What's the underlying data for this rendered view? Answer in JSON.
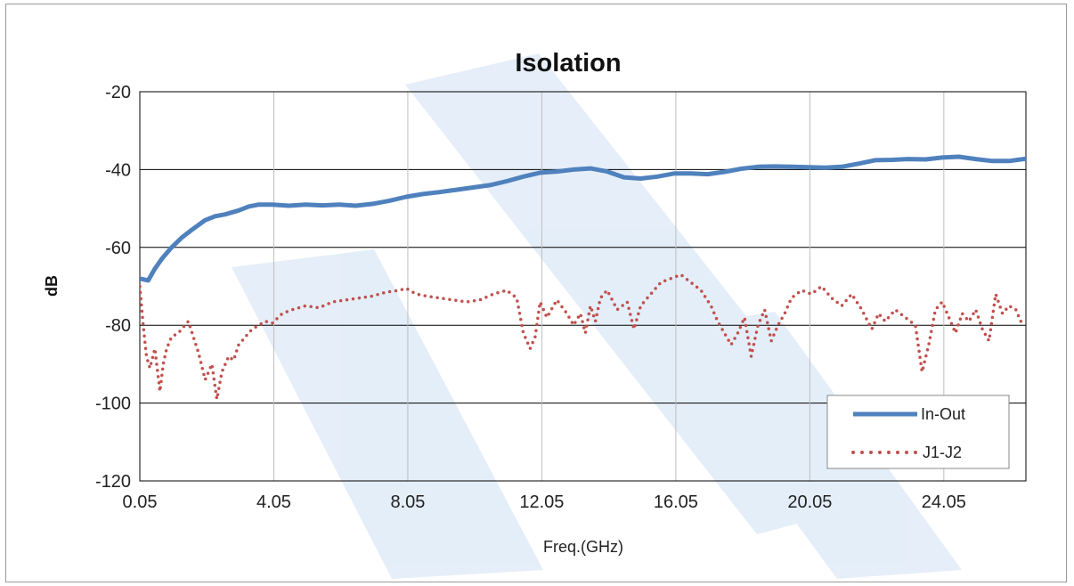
{
  "chart_data": {
    "type": "line",
    "title": "Isolation",
    "xlabel": "Freq.(GHz)",
    "ylabel": "dB",
    "xlim": [
      0.05,
      26.5
    ],
    "ylim": [
      -120,
      -20
    ],
    "x_ticks": [
      0.05,
      4.05,
      8.05,
      12.05,
      16.05,
      20.05,
      24.05
    ],
    "x_tick_labels": [
      "0.05",
      "4.05",
      "8.05",
      "12.05",
      "16.05",
      "20.05",
      "24.05"
    ],
    "y_ticks": [
      -20,
      -40,
      -60,
      -80,
      -100,
      -120
    ],
    "y_tick_labels": [
      "-20",
      "-40",
      "-60",
      "-80",
      "-100",
      "-120"
    ],
    "grid": true,
    "legend_position": "bottom-right",
    "series": [
      {
        "name": "In-Out",
        "style": "solid",
        "color": "#4f81bd",
        "x": [
          0.05,
          0.3,
          0.5,
          0.7,
          1.0,
          1.3,
          1.6,
          2.0,
          2.3,
          2.6,
          3.0,
          3.3,
          3.6,
          4.0,
          4.5,
          5.0,
          5.5,
          6.0,
          6.5,
          7.0,
          7.5,
          8.0,
          8.5,
          9.0,
          9.5,
          10.0,
          10.5,
          11.0,
          11.5,
          12.0,
          12.5,
          13.0,
          13.5,
          14.0,
          14.5,
          15.0,
          15.5,
          16.0,
          16.5,
          17.0,
          17.5,
          18.0,
          18.5,
          19.0,
          19.5,
          20.0,
          20.5,
          21.0,
          21.5,
          22.0,
          22.5,
          23.0,
          23.5,
          24.0,
          24.5,
          25.0,
          25.5,
          26.0,
          26.5
        ],
        "y": [
          -68,
          -68.5,
          -65.5,
          -63,
          -60,
          -57.5,
          -55.5,
          -53,
          -52,
          -51.5,
          -50.5,
          -49.5,
          -49,
          -49,
          -49.3,
          -49,
          -49.2,
          -49,
          -49.3,
          -48.8,
          -48,
          -47,
          -46.3,
          -45.8,
          -45.2,
          -44.6,
          -44,
          -43,
          -41.8,
          -40.8,
          -40.5,
          -40,
          -39.7,
          -40.5,
          -42,
          -42.3,
          -41.8,
          -41,
          -41,
          -41.2,
          -40.6,
          -39.8,
          -39.3,
          -39.2,
          -39.3,
          -39.4,
          -39.5,
          -39.3,
          -38.5,
          -37.6,
          -37.5,
          -37.3,
          -37.4,
          -36.9,
          -36.7,
          -37.3,
          -37.8,
          -37.8,
          -37.2
        ]
      },
      {
        "name": "J1-J2",
        "style": "dotted",
        "color": "#c0504d",
        "x": [
          0.05,
          0.15,
          0.25,
          0.35,
          0.5,
          0.65,
          0.75,
          0.85,
          1.0,
          1.2,
          1.5,
          1.8,
          2.0,
          2.2,
          2.35,
          2.5,
          2.7,
          2.85,
          3.0,
          3.2,
          3.4,
          3.6,
          3.8,
          4.0,
          4.3,
          4.6,
          5.0,
          5.4,
          5.8,
          6.2,
          6.6,
          7.0,
          7.4,
          7.8,
          8.0,
          8.3,
          8.6,
          9.0,
          9.4,
          9.8,
          10.2,
          10.6,
          11.0,
          11.3,
          11.5,
          11.7,
          11.85,
          12.0,
          12.2,
          12.5,
          12.8,
          13.0,
          13.2,
          13.35,
          13.5,
          13.65,
          13.8,
          14.0,
          14.3,
          14.6,
          14.8,
          15.0,
          15.2,
          15.4,
          15.6,
          15.9,
          16.2,
          16.5,
          16.8,
          17.1,
          17.3,
          17.5,
          17.7,
          17.9,
          18.1,
          18.3,
          18.5,
          18.7,
          18.9,
          19.1,
          19.3,
          19.5,
          19.8,
          20.1,
          20.4,
          20.7,
          21.0,
          21.3,
          21.6,
          21.9,
          22.1,
          22.3,
          22.6,
          22.9,
          23.2,
          23.4,
          23.6,
          23.8,
          24.0,
          24.2,
          24.4,
          24.6,
          24.8,
          25.0,
          25.2,
          25.4,
          25.6,
          25.8,
          26.0,
          26.2,
          26.4
        ],
        "y": [
          -70,
          -80,
          -88,
          -91,
          -86,
          -97,
          -90,
          -86,
          -83,
          -82,
          -79,
          -87,
          -94,
          -90,
          -99,
          -92,
          -88,
          -89,
          -85,
          -83,
          -81,
          -80,
          -79,
          -79.5,
          -77,
          -76,
          -75,
          -75.5,
          -74,
          -73.5,
          -73,
          -72.5,
          -71.5,
          -71,
          -70.5,
          -72,
          -72.5,
          -73,
          -73.5,
          -74,
          -73.5,
          -72,
          -71,
          -73,
          -82,
          -86,
          -83,
          -74,
          -78,
          -73.5,
          -77,
          -80,
          -77,
          -82,
          -75,
          -79,
          -73,
          -71,
          -76,
          -74,
          -81,
          -75,
          -73,
          -71,
          -69,
          -68,
          -67,
          -69,
          -71,
          -75,
          -79,
          -82,
          -85,
          -82,
          -78,
          -88,
          -80,
          -76,
          -84,
          -80,
          -77,
          -73,
          -71,
          -72,
          -70,
          -73,
          -75,
          -72,
          -76,
          -81,
          -77,
          -79,
          -76,
          -78,
          -80,
          -92,
          -85,
          -76,
          -74,
          -78,
          -82,
          -77,
          -79,
          -76,
          -81,
          -84,
          -72,
          -77,
          -75,
          -76,
          -80
        ]
      }
    ]
  }
}
